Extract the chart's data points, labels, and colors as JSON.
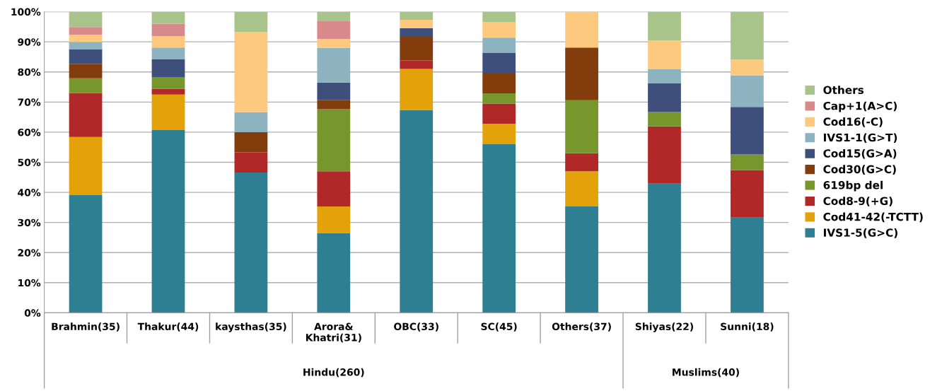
{
  "chart_data": {
    "type": "bar",
    "stacked": true,
    "legend": "right",
    "grid": "y",
    "categories": [
      "Brahmin(35)",
      "Thakur(44)",
      "kaysthas(35)",
      "Arora&\nKhatri(31)",
      "OBC(33)",
      "SC(45)",
      "Others(37)",
      "Shiyas(22)",
      "Sunni(18)"
    ],
    "annotations": [
      "Hindu(260)",
      "Muslims(40)"
    ],
    "ylim": [
      0,
      100
    ],
    "yticks": [
      {
        "value": 0,
        "label": "0%"
      },
      {
        "value": 10,
        "label": "10%"
      },
      {
        "value": 20,
        "label": "20%"
      },
      {
        "value": 30,
        "label": "30%"
      },
      {
        "value": 40,
        "label": "40%"
      },
      {
        "value": 50,
        "label": "50%"
      },
      {
        "value": 60,
        "label": "60%"
      },
      {
        "value": 70,
        "label": "70%"
      },
      {
        "value": 80,
        "label": "80%"
      },
      {
        "value": 90,
        "label": "90%"
      },
      {
        "value": 100,
        "label": "100%"
      }
    ],
    "series": [
      {
        "name": "IVS1-5(G>C)",
        "color": "#2e7f91",
        "values": [
          39.1,
          60.7,
          46.6,
          26.5,
          67.4,
          56.0,
          35.3,
          42.9,
          31.6
        ]
      },
      {
        "name": "Cod41-42(-TCTT)",
        "color": "#e3a20a",
        "values": [
          19.3,
          11.8,
          0,
          8.8,
          13.6,
          6.8,
          11.7,
          0,
          0
        ]
      },
      {
        "name": "Cod8-9(+G)",
        "color": "#b02828",
        "values": [
          14.6,
          1.9,
          6.7,
          11.7,
          2.8,
          6.7,
          6.0,
          19.0,
          15.8
        ]
      },
      {
        "name": "619bp del",
        "color": "#77962c",
        "values": [
          4.9,
          3.9,
          0,
          20.6,
          0,
          3.4,
          17.6,
          4.8,
          5.2
        ]
      },
      {
        "name": "Cod30(G>C)",
        "color": "#833c0b",
        "values": [
          4.8,
          0,
          6.7,
          3.0,
          8.1,
          6.8,
          17.5,
          0,
          0
        ]
      },
      {
        "name": "Cod15(G>A)",
        "color": "#3f4f7c",
        "values": [
          4.9,
          6.0,
          0,
          5.9,
          2.6,
          6.7,
          0,
          9.5,
          15.8
        ]
      },
      {
        "name": "IVS1-1(G>T)",
        "color": "#8db3c0",
        "values": [
          2.4,
          3.8,
          6.7,
          11.5,
          0,
          5.0,
          0,
          4.8,
          10.5
        ]
      },
      {
        "name": "Cod16(-C)",
        "color": "#fcc97f",
        "values": [
          2.4,
          3.8,
          26.6,
          3.0,
          2.8,
          5.2,
          11.9,
          9.5,
          5.2
        ]
      },
      {
        "name": "Cap+1(A>C)",
        "color": "#d88a8a",
        "values": [
          2.5,
          4.1,
          0,
          6.0,
          0,
          0,
          0,
          0,
          0
        ]
      },
      {
        "name": "Others",
        "color": "#a9c48a",
        "values": [
          5.1,
          4.0,
          6.7,
          3.0,
          2.7,
          3.4,
          0,
          9.5,
          15.9
        ]
      }
    ]
  }
}
